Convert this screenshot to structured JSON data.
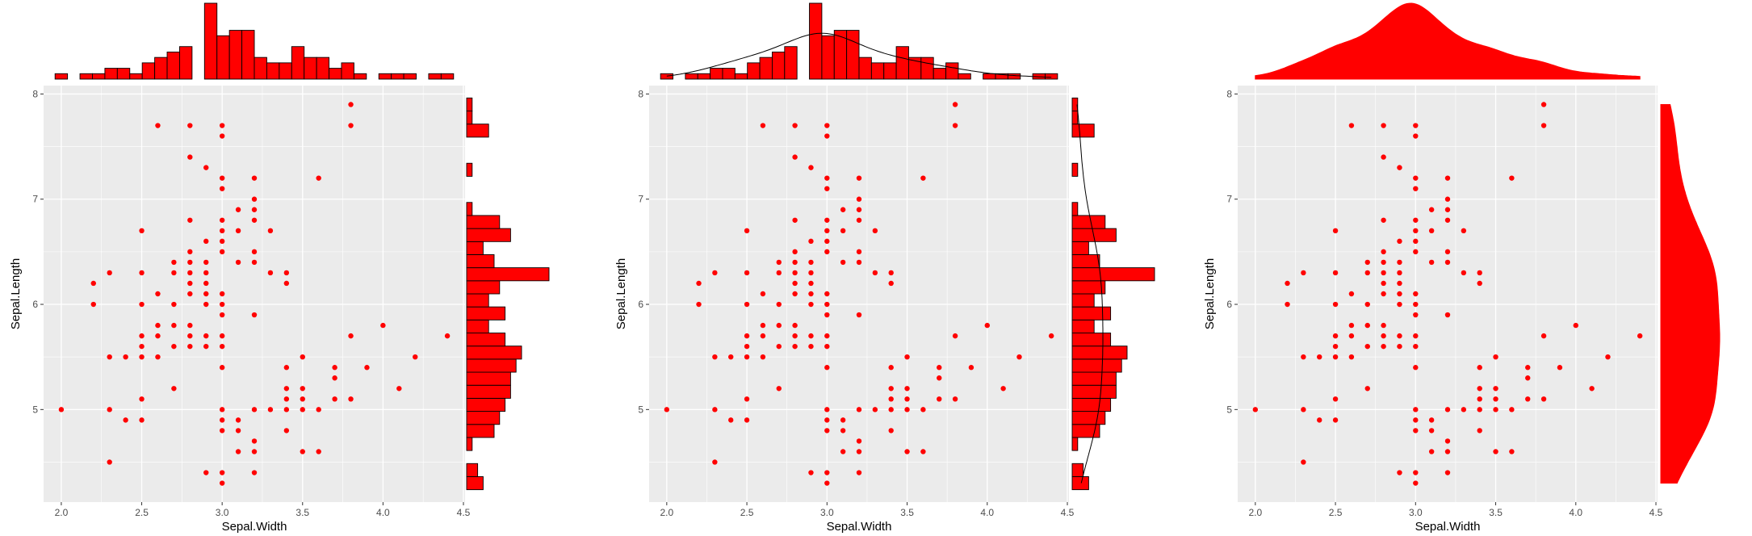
{
  "colors": {
    "point": "#ff0000",
    "bar_fill": "#ff0000",
    "bar_stroke": "#000000",
    "panel_bg": "#ebebeb",
    "grid": "#ffffff",
    "axis_text": "#4d4d4d",
    "density_line": "#000000"
  },
  "chart_data": [
    {
      "type": "scatter",
      "marginal": "histogram",
      "xlabel": "Sepal.Width",
      "ylabel": "Sepal.Length",
      "xlim": [
        1.89,
        4.51
      ],
      "ylim": [
        4.12,
        8.08
      ],
      "x_ticks": [
        "2.0",
        "2.5",
        "3.0",
        "3.5",
        "4.0",
        "4.5"
      ],
      "y_ticks": [
        "5",
        "6",
        "7",
        "8"
      ],
      "grid": true,
      "density_overlay": false,
      "marginal_x_counts": [
        1,
        0,
        1,
        1,
        2,
        2,
        1,
        3,
        4,
        5,
        6,
        0,
        14,
        8,
        9,
        9,
        4,
        3,
        3,
        6,
        4,
        4,
        2,
        3,
        1,
        0,
        1,
        1,
        1,
        0,
        1,
        1
      ],
      "marginal_y_counts": [
        3,
        2,
        0,
        1,
        5,
        6,
        7,
        8,
        8,
        9,
        10,
        7,
        4,
        7,
        4,
        6,
        15,
        5,
        3,
        8,
        6,
        1,
        0,
        0,
        1,
        0,
        0,
        4,
        1,
        1
      ]
    },
    {
      "type": "scatter",
      "marginal": "histogram",
      "xlabel": "Sepal.Width",
      "ylabel": "Sepal.Length",
      "xlim": [
        1.89,
        4.51
      ],
      "ylim": [
        4.12,
        8.08
      ],
      "x_ticks": [
        "2.0",
        "2.5",
        "3.0",
        "3.5",
        "4.0",
        "4.5"
      ],
      "y_ticks": [
        "5",
        "6",
        "7",
        "8"
      ],
      "grid": true,
      "density_overlay": true,
      "marginal_x_counts": [
        1,
        0,
        1,
        1,
        2,
        2,
        1,
        3,
        4,
        5,
        6,
        0,
        14,
        8,
        9,
        9,
        4,
        3,
        3,
        6,
        4,
        4,
        2,
        3,
        1,
        0,
        1,
        1,
        1,
        0,
        1,
        1
      ],
      "marginal_y_counts": [
        3,
        2,
        0,
        1,
        5,
        6,
        7,
        8,
        8,
        9,
        10,
        7,
        4,
        7,
        4,
        6,
        15,
        5,
        3,
        8,
        6,
        1,
        0,
        0,
        1,
        0,
        0,
        4,
        1,
        1
      ]
    },
    {
      "type": "scatter",
      "marginal": "density",
      "xlabel": "Sepal.Width",
      "ylabel": "Sepal.Length",
      "xlim": [
        1.89,
        4.51
      ],
      "ylim": [
        4.12,
        8.08
      ],
      "x_ticks": [
        "2.0",
        "2.5",
        "3.0",
        "3.5",
        "4.0",
        "4.5"
      ],
      "y_ticks": [
        "5",
        "6",
        "7",
        "8"
      ],
      "grid": true,
      "density_overlay": false
    }
  ],
  "points": [
    [
      2.0,
      5.0
    ],
    [
      2.2,
      6.0
    ],
    [
      2.2,
      6.2
    ],
    [
      2.3,
      4.5
    ],
    [
      2.3,
      5.0
    ],
    [
      2.3,
      5.5
    ],
    [
      2.3,
      6.3
    ],
    [
      2.4,
      4.9
    ],
    [
      2.4,
      5.5
    ],
    [
      2.5,
      4.9
    ],
    [
      2.5,
      5.1
    ],
    [
      2.5,
      5.5
    ],
    [
      2.5,
      5.6
    ],
    [
      2.5,
      5.7
    ],
    [
      2.5,
      6.0
    ],
    [
      2.5,
      6.3
    ],
    [
      2.5,
      6.7
    ],
    [
      2.6,
      5.5
    ],
    [
      2.6,
      5.7
    ],
    [
      2.6,
      5.8
    ],
    [
      2.6,
      6.1
    ],
    [
      2.6,
      7.7
    ],
    [
      2.7,
      5.2
    ],
    [
      2.7,
      5.6
    ],
    [
      2.7,
      5.8
    ],
    [
      2.7,
      6.0
    ],
    [
      2.7,
      6.3
    ],
    [
      2.7,
      6.4
    ],
    [
      2.8,
      5.6
    ],
    [
      2.8,
      5.7
    ],
    [
      2.8,
      5.8
    ],
    [
      2.8,
      6.1
    ],
    [
      2.8,
      6.2
    ],
    [
      2.8,
      6.3
    ],
    [
      2.8,
      6.4
    ],
    [
      2.8,
      6.5
    ],
    [
      2.8,
      6.8
    ],
    [
      2.8,
      7.4
    ],
    [
      2.8,
      7.7
    ],
    [
      2.9,
      4.4
    ],
    [
      2.9,
      5.6
    ],
    [
      2.9,
      5.7
    ],
    [
      2.9,
      6.0
    ],
    [
      2.9,
      6.1
    ],
    [
      2.9,
      6.2
    ],
    [
      2.9,
      6.3
    ],
    [
      2.9,
      6.4
    ],
    [
      2.9,
      6.6
    ],
    [
      2.9,
      7.3
    ],
    [
      3.0,
      4.3
    ],
    [
      3.0,
      4.4
    ],
    [
      3.0,
      4.8
    ],
    [
      3.0,
      4.9
    ],
    [
      3.0,
      5.0
    ],
    [
      3.0,
      5.4
    ],
    [
      3.0,
      5.6
    ],
    [
      3.0,
      5.7
    ],
    [
      3.0,
      5.9
    ],
    [
      3.0,
      6.0
    ],
    [
      3.0,
      6.1
    ],
    [
      3.0,
      6.5
    ],
    [
      3.0,
      6.6
    ],
    [
      3.0,
      6.7
    ],
    [
      3.0,
      6.8
    ],
    [
      3.0,
      7.1
    ],
    [
      3.0,
      7.2
    ],
    [
      3.0,
      7.6
    ],
    [
      3.0,
      7.7
    ],
    [
      3.1,
      4.6
    ],
    [
      3.1,
      4.8
    ],
    [
      3.1,
      4.9
    ],
    [
      3.1,
      6.4
    ],
    [
      3.1,
      6.7
    ],
    [
      3.1,
      6.9
    ],
    [
      3.2,
      4.4
    ],
    [
      3.2,
      4.6
    ],
    [
      3.2,
      4.7
    ],
    [
      3.2,
      5.0
    ],
    [
      3.2,
      5.9
    ],
    [
      3.2,
      6.4
    ],
    [
      3.2,
      6.5
    ],
    [
      3.2,
      6.8
    ],
    [
      3.2,
      6.9
    ],
    [
      3.2,
      7.0
    ],
    [
      3.2,
      7.2
    ],
    [
      3.3,
      5.0
    ],
    [
      3.3,
      6.3
    ],
    [
      3.3,
      6.7
    ],
    [
      3.4,
      4.8
    ],
    [
      3.4,
      5.0
    ],
    [
      3.4,
      5.1
    ],
    [
      3.4,
      5.2
    ],
    [
      3.4,
      5.4
    ],
    [
      3.4,
      6.2
    ],
    [
      3.4,
      6.3
    ],
    [
      3.5,
      4.6
    ],
    [
      3.5,
      5.0
    ],
    [
      3.5,
      5.1
    ],
    [
      3.5,
      5.2
    ],
    [
      3.5,
      5.5
    ],
    [
      3.6,
      4.6
    ],
    [
      3.6,
      5.0
    ],
    [
      3.6,
      7.2
    ],
    [
      3.7,
      5.1
    ],
    [
      3.7,
      5.3
    ],
    [
      3.7,
      5.4
    ],
    [
      3.8,
      5.1
    ],
    [
      3.8,
      5.7
    ],
    [
      3.8,
      7.7
    ],
    [
      3.8,
      7.9
    ],
    [
      3.9,
      5.4
    ],
    [
      4.0,
      5.8
    ],
    [
      4.1,
      5.2
    ],
    [
      4.2,
      5.5
    ],
    [
      4.4,
      5.7
    ]
  ]
}
